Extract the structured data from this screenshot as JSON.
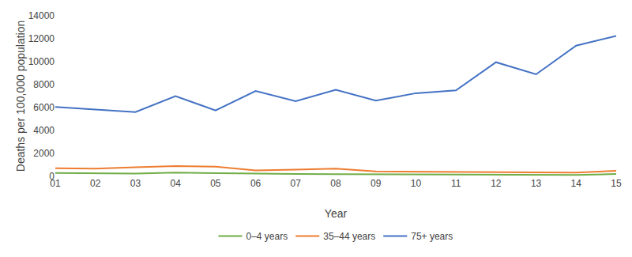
{
  "chart_data": {
    "type": "line",
    "xlabel": "Year",
    "ylabel": "Deaths per 100,000 population",
    "categories": [
      "01",
      "02",
      "03",
      "04",
      "05",
      "06",
      "07",
      "08",
      "09",
      "10",
      "11",
      "12",
      "13",
      "14",
      "15"
    ],
    "series": [
      {
        "name": "0–4 years",
        "color": "#70ad47",
        "values": [
          300,
          270,
          250,
          320,
          270,
          220,
          200,
          190,
          180,
          160,
          150,
          140,
          130,
          120,
          200
        ]
      },
      {
        "name": "35–44 years",
        "color": "#ed7d31",
        "values": [
          700,
          680,
          800,
          900,
          850,
          520,
          580,
          680,
          430,
          420,
          400,
          380,
          350,
          330,
          480
        ]
      },
      {
        "name": "75+ years",
        "color": "#4472c4",
        "values": [
          6050,
          5850,
          5600,
          7000,
          5750,
          7450,
          6550,
          7550,
          6600,
          7250,
          7500,
          9950,
          8900,
          11400,
          12250
        ]
      }
    ],
    "ylim": [
      0,
      14000
    ],
    "yticks": [
      0,
      2000,
      4000,
      6000,
      8000,
      10000,
      12000,
      14000
    ],
    "grid": false,
    "legend": "bottom"
  }
}
